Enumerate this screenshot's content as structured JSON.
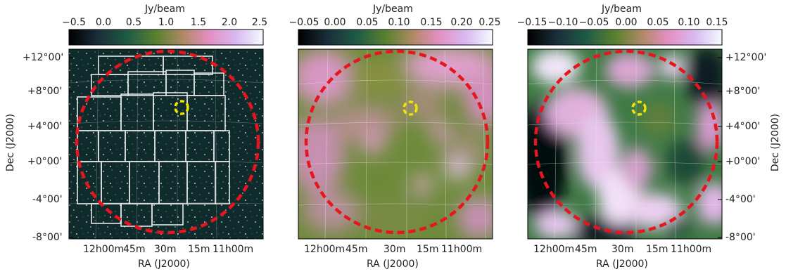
{
  "colorbar_unit": "Jy/beam",
  "panels": [
    {
      "name": "left",
      "colorbar_ticks": [
        "−0.5",
        "0.0",
        "0.5",
        "1.0",
        "1.5",
        "2.0",
        "2.5"
      ],
      "x_ticks": [
        "12h00m",
        "45m",
        "30m",
        "15m",
        "11h00m"
      ],
      "x_label": "RA (J2000)",
      "y_ticks": [
        "+12°00'",
        "+8°00'",
        "+4°00'",
        "+0°00'",
        "-4°00'",
        "-8°00'"
      ],
      "y_label": "Dec (J2000)"
    },
    {
      "name": "middle",
      "colorbar_ticks": [
        "−0.05",
        "0.00",
        "0.05",
        "0.10",
        "0.15",
        "0.20",
        "0.25"
      ],
      "x_ticks": [
        "12h00m",
        "45m",
        "30m",
        "15m",
        "11h00m"
      ],
      "x_label": "RA (J2000)"
    },
    {
      "name": "right",
      "colorbar_ticks": [
        "−0.15",
        "−0.10",
        "−0.05",
        "0.00",
        "0.05",
        "0.10",
        "0.15"
      ],
      "x_ticks": [
        "12h00m",
        "45m",
        "30m",
        "15m",
        "11h00m"
      ],
      "x_label": "RA (J2000)",
      "y_ticks": [
        "+12°00'",
        "+8°00'",
        "+4°00'",
        "+0°00'",
        "-4°00'",
        "-8°00'"
      ],
      "y_label": "Dec (J2000)"
    }
  ],
  "colors": {
    "circle": "#e8141e",
    "marker": "#f2e600",
    "tiles": "#e6e6e6"
  }
}
